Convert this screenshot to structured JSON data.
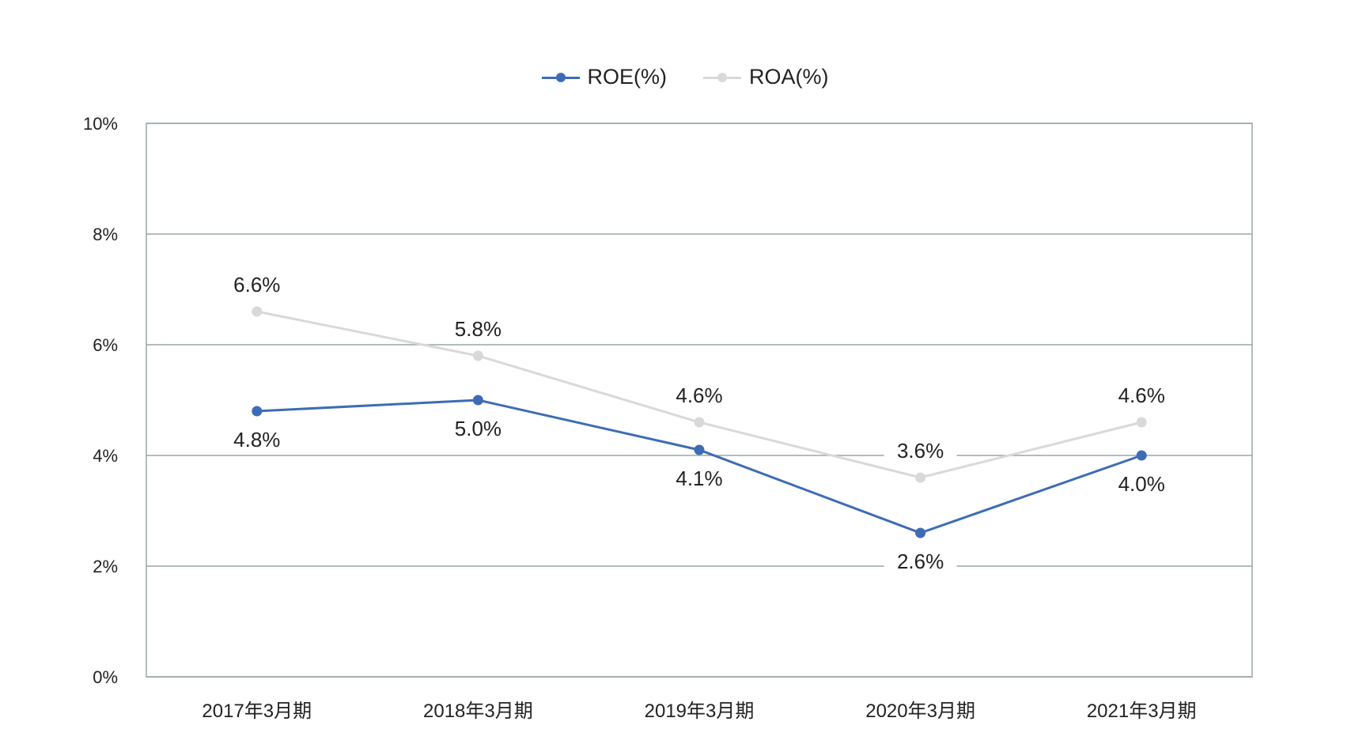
{
  "chart_data": {
    "type": "line",
    "categories": [
      "2017年3月期",
      "2018年3月期",
      "2019年3月期",
      "2020年3月期",
      "2021年3月期"
    ],
    "series": [
      {
        "name": "ROE(%)",
        "color": "#3d6cb5",
        "values": [
          4.8,
          5.0,
          4.1,
          2.6,
          4.0
        ],
        "labels": [
          "4.8%",
          "5.0%",
          "4.1%",
          "2.6%",
          "4.0%"
        ],
        "label_position": "below"
      },
      {
        "name": "ROA(%)",
        "color": "#d9d9d9",
        "values": [
          6.6,
          5.8,
          4.6,
          3.6,
          4.6
        ],
        "labels": [
          "6.6%",
          "5.8%",
          "4.6%",
          "3.6%",
          "4.6%"
        ],
        "label_position": "above"
      }
    ],
    "ylim": [
      0,
      10
    ],
    "yticks": [
      0,
      2,
      4,
      6,
      8,
      10
    ],
    "ytick_labels": [
      "0%",
      "2%",
      "4%",
      "6%",
      "8%",
      "10%"
    ],
    "grid": true,
    "legend_position": "top-center",
    "title": "",
    "xlabel": "",
    "ylabel": ""
  }
}
